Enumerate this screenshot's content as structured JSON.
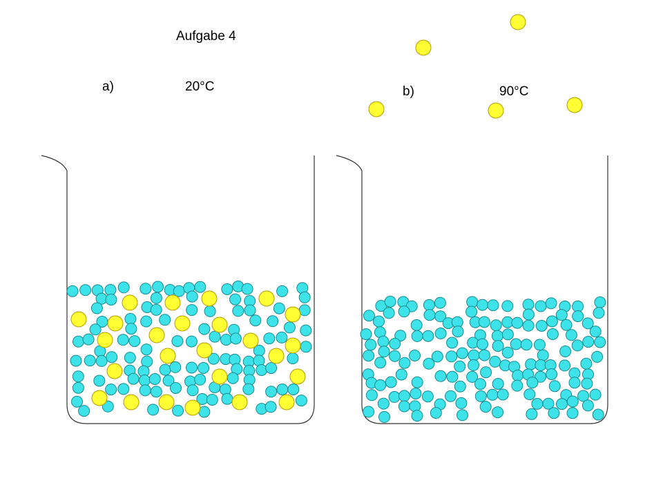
{
  "header": {
    "title": "Aufgabe 4"
  },
  "panels": [
    {
      "label": "a)",
      "temperature": "20°C"
    },
    {
      "label": "b)",
      "temperature": "90°C"
    }
  ]
}
